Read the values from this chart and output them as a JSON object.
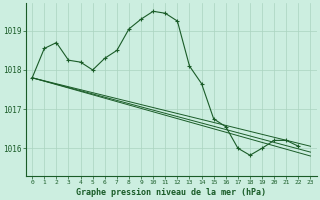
{
  "title": "Graphe pression niveau de la mer (hPa)",
  "background_color": "#cceee0",
  "grid_color": "#aad4c0",
  "line_color": "#1a5c28",
  "x_ticks": [
    0,
    1,
    2,
    3,
    4,
    5,
    6,
    7,
    8,
    9,
    10,
    11,
    12,
    13,
    14,
    15,
    16,
    17,
    18,
    19,
    20,
    21,
    22,
    23
  ],
  "ylim": [
    1015.3,
    1019.7
  ],
  "yticks": [
    1016,
    1017,
    1018,
    1019
  ],
  "main_x": [
    0,
    1,
    2,
    3,
    4,
    5,
    6,
    7,
    8,
    9,
    10,
    11,
    12,
    13,
    14,
    15,
    16,
    17,
    18,
    19,
    20,
    21,
    22
  ],
  "main_y": [
    1017.8,
    1018.55,
    1018.7,
    1018.25,
    1018.2,
    1018.0,
    1018.3,
    1018.5,
    1019.05,
    1019.3,
    1019.5,
    1019.45,
    1019.25,
    1018.1,
    1017.65,
    1016.75,
    1016.55,
    1016.0,
    1015.82,
    1016.0,
    1016.2,
    1016.2,
    1016.05
  ],
  "diag_lines": [
    {
      "x": [
        0,
        23
      ],
      "y": [
        1017.8,
        1016.05
      ]
    },
    {
      "x": [
        0,
        23
      ],
      "y": [
        1017.8,
        1015.9
      ]
    },
    {
      "x": [
        0,
        23
      ],
      "y": [
        1017.8,
        1015.8
      ]
    }
  ]
}
